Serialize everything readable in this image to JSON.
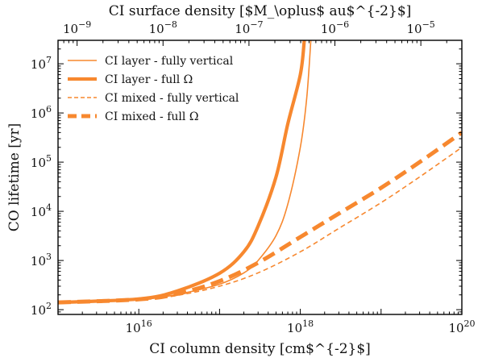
{
  "colors": {
    "series": "#f7882f",
    "axis": "#000000"
  },
  "chart_data": {
    "type": "line",
    "xlabel": "CI column density [cm$^{-2}$]",
    "ylabel": "CO lifetime [yr]",
    "top_xlabel": "CI surface density [$M_\\oplus$ au$^{-2}$]",
    "x_scale": "log",
    "y_scale": "log",
    "xlim": [
      1000000000000000.0,
      1e+20
    ],
    "ylim": [
      80,
      30000000.0
    ],
    "top_xlim": [
      6e-10,
      3e-05
    ],
    "legend_position": "top-left",
    "x_ticks": [
      {
        "value": 1e+16,
        "base": "10",
        "exp": "16"
      },
      {
        "value": 1e+18,
        "base": "10",
        "exp": "18"
      },
      {
        "value": 1e+20,
        "base": "10",
        "exp": "20"
      }
    ],
    "y_ticks": [
      {
        "value": 100,
        "base": "10",
        "exp": "2"
      },
      {
        "value": 1000,
        "base": "10",
        "exp": "3"
      },
      {
        "value": 10000,
        "base": "10",
        "exp": "4"
      },
      {
        "value": 100000,
        "base": "10",
        "exp": "5"
      },
      {
        "value": 1000000,
        "base": "10",
        "exp": "6"
      },
      {
        "value": 10000000,
        "base": "10",
        "exp": "7"
      }
    ],
    "top_ticks": [
      {
        "value": 1e-09,
        "base": "10",
        "exp": "−9"
      },
      {
        "value": 1e-08,
        "base": "10",
        "exp": "−8"
      },
      {
        "value": 1e-07,
        "base": "10",
        "exp": "−7"
      },
      {
        "value": 1e-06,
        "base": "10",
        "exp": "−6"
      },
      {
        "value": 1e-05,
        "base": "10",
        "exp": "−5"
      }
    ],
    "series": [
      {
        "name": "CI layer - fully vertical",
        "style": "thin-solid",
        "x": [
          1000000000000000.0,
          1e+16,
          3e+16,
          1e+17,
          2e+17,
          3e+17,
          5e+17,
          7e+17,
          1e+18,
          1.2e+18,
          1.35e+18
        ],
        "y": [
          140,
          160,
          205,
          330,
          560,
          1000,
          3200,
          14000,
          200000,
          2000000,
          30000000
        ]
      },
      {
        "name": "CI layer - full Ω",
        "style": "thick-solid",
        "x": [
          1000000000000000.0,
          1e+16,
          3e+16,
          1e+17,
          2e+17,
          3e+17,
          5e+17,
          7e+17,
          1e+18,
          1.12e+18
        ],
        "y": [
          140,
          165,
          240,
          550,
          1500,
          5000,
          50000,
          600000,
          6000000,
          30000000
        ]
      },
      {
        "name": "CI mixed - fully vertical",
        "style": "thin-dashed",
        "x": [
          1000000000000000.0,
          1e+16,
          3e+16,
          1e+17,
          3e+17,
          1e+18,
          3e+18,
          1e+19,
          3e+19,
          1e+20
        ],
        "y": [
          140,
          158,
          195,
          300,
          560,
          1500,
          4500,
          15000,
          50000,
          200000
        ]
      },
      {
        "name": "CI mixed - full Ω",
        "style": "thick-dashed",
        "x": [
          1000000000000000.0,
          1e+16,
          3e+16,
          1e+17,
          3e+17,
          1e+18,
          3e+18,
          1e+19,
          3e+19,
          1e+20
        ],
        "y": [
          140,
          162,
          210,
          380,
          900,
          3000,
          9000,
          30000,
          100000,
          400000
        ]
      }
    ]
  }
}
